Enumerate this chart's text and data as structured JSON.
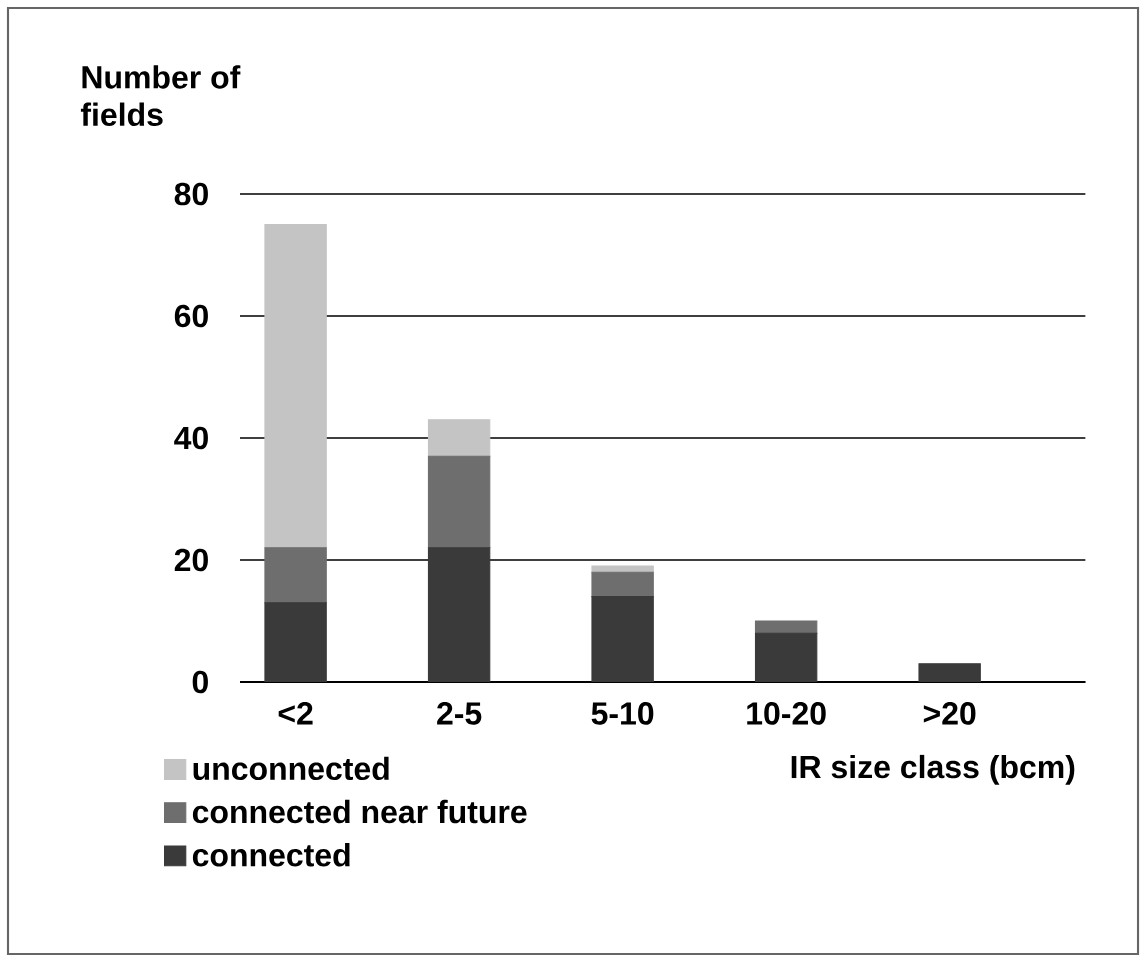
{
  "chart_data": {
    "type": "bar",
    "stacked": true,
    "ylabel": "Number of fields",
    "xlabel": "IR size class (bcm)",
    "categories": [
      "<2",
      "2-5",
      "5-10",
      "10-20",
      ">20"
    ],
    "series": [
      {
        "name": "connected",
        "color": "#3a3a3a",
        "values": [
          13,
          22,
          14,
          8,
          3
        ]
      },
      {
        "name": "connected near future",
        "color": "#6e6e6e",
        "values": [
          9,
          15,
          4,
          2,
          0
        ]
      },
      {
        "name": "unconnected",
        "color": "#c4c4c4",
        "values": [
          53,
          6,
          1,
          0,
          0
        ]
      }
    ],
    "ylim": [
      0,
      80
    ],
    "yticks": [
      0,
      20,
      40,
      60,
      80
    ],
    "grid": "y",
    "legend": "bottom left"
  }
}
